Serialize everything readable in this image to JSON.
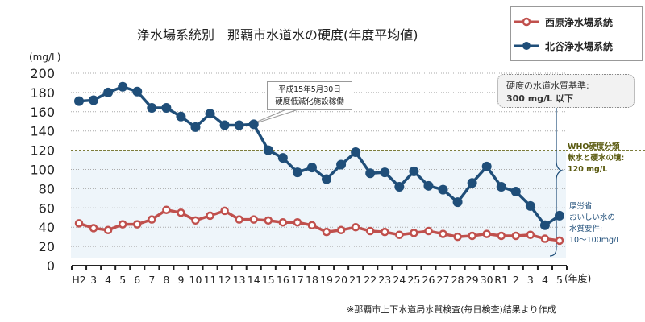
{
  "chart_data": {
    "type": "line",
    "title": "浄水場系統別　那覇市水道水の硬度(年度平均値)",
    "ylabel": "(mg/L)",
    "xlabel": "(年度)",
    "ylim": [
      0,
      200
    ],
    "yticks": [
      0,
      20,
      40,
      60,
      80,
      100,
      120,
      140,
      160,
      180,
      200
    ],
    "grid": true,
    "legend_position": "top-right",
    "categories": [
      "H2",
      "3",
      "4",
      "5",
      "6",
      "7",
      "8",
      "9",
      "10",
      "11",
      "12",
      "13",
      "14",
      "15",
      "16",
      "17",
      "18",
      "19",
      "20",
      "21",
      "22",
      "23",
      "24",
      "25",
      "26",
      "27",
      "28",
      "29",
      "30",
      "R1",
      "2",
      "3",
      "4",
      "5"
    ],
    "series": [
      {
        "name": "西原浄水場系統",
        "color": "#c0504d",
        "values": [
          44,
          39,
          37,
          43,
          43,
          48,
          58,
          55,
          47,
          52,
          57,
          48,
          48,
          47,
          45,
          45,
          42,
          35,
          37,
          40,
          36,
          35,
          32,
          34,
          36,
          33,
          30,
          31,
          33,
          31,
          31,
          32,
          28,
          26
        ]
      },
      {
        "name": "北谷浄水場系統",
        "color": "#1f4e79",
        "values": [
          171,
          172,
          180,
          186,
          181,
          164,
          164,
          155,
          144,
          158,
          146,
          146,
          147,
          120,
          112,
          97,
          102,
          90,
          105,
          118,
          96,
          97,
          82,
          98,
          83,
          79,
          66,
          86,
          103,
          82,
          77,
          62,
          42,
          52
        ]
      }
    ],
    "annotations": {
      "callout": [
        "平成15年5月30日",
        "硬度低減化施設稼働"
      ],
      "standard": [
        "硬度の水道水質基準:",
        "300 mg/L 以下"
      ],
      "who": [
        "WHO硬度分類",
        "軟水と硬水の境:",
        "120 mg/L"
      ],
      "mhlw": [
        "厚労省",
        "おいしい水の",
        "水質要件:",
        "10～100mg/L"
      ]
    },
    "source": "※那覇市上下水道局水質検査(毎日検査)結果より作成"
  }
}
